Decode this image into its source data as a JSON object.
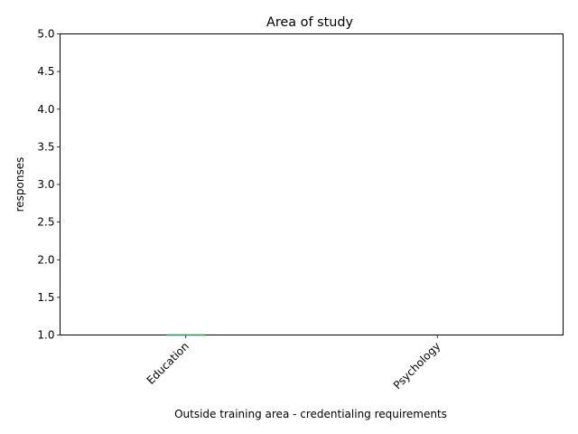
{
  "chart_data": {
    "type": "box",
    "title": "Area of study",
    "xlabel": "Outside training area - credentialing requirements",
    "ylabel": "responses",
    "categories": [
      "Education",
      "Psychology"
    ],
    "ylim": [
      1.0,
      5.0
    ],
    "yticks": [
      "1.0",
      "1.5",
      "2.0",
      "2.5",
      "3.0",
      "3.5",
      "4.0",
      "4.5",
      "5.0"
    ],
    "series": [
      {
        "category": "Education",
        "min": 1,
        "q1": 1,
        "median": 1,
        "q3": 1,
        "max": 1
      },
      {
        "category": "Psychology",
        "min": null,
        "q1": null,
        "median": null,
        "q3": null,
        "max": null
      }
    ],
    "grid": false,
    "colors": {
      "axis": "#000000",
      "box": "#1f77b4",
      "median": "#2ca02c"
    }
  }
}
